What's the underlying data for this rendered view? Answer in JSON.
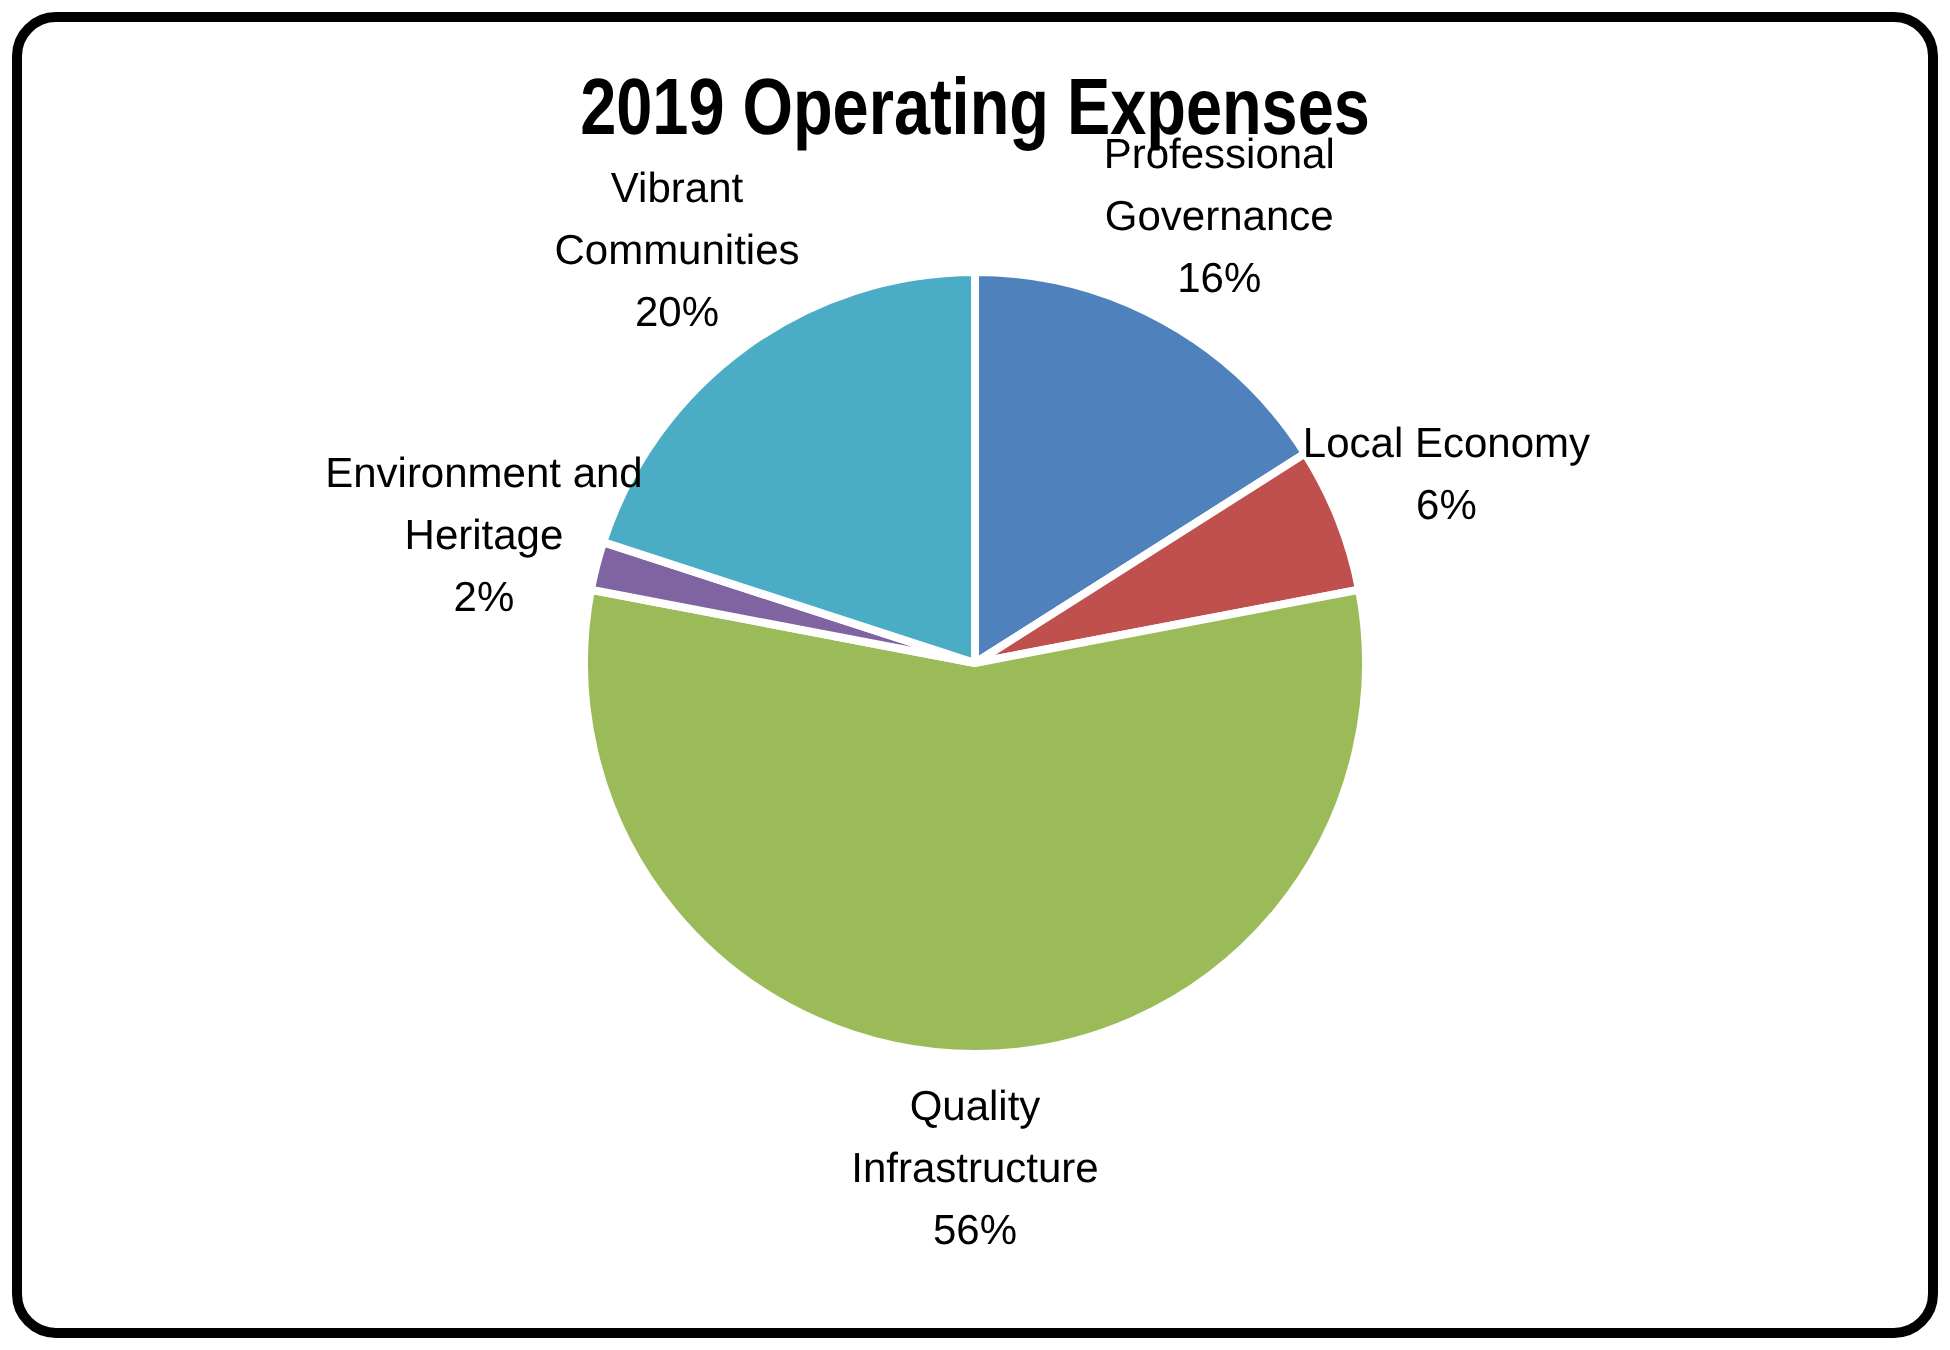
{
  "chart_data": {
    "type": "pie",
    "title": "2019 Operating Expenses",
    "categories": [
      "Professional Governance",
      "Local Economy",
      "Quality Infrastructure",
      "Environment and Heritage",
      "Vibrant Communities"
    ],
    "values": [
      16,
      6,
      56,
      2,
      20
    ],
    "value_labels": [
      "16%",
      "6%",
      "56%",
      "2%",
      "20%"
    ],
    "colors": [
      "#4f81bd",
      "#c0504d",
      "#9bbb59",
      "#8064a2",
      "#4bacc6"
    ],
    "legend": false
  }
}
